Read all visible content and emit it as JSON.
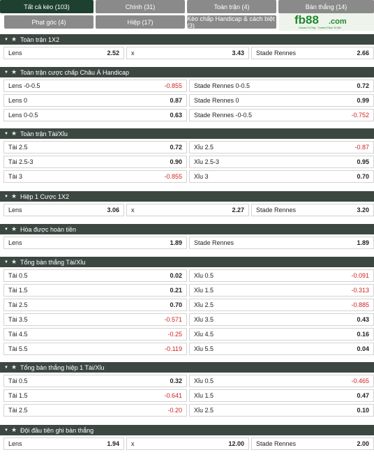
{
  "tabs": {
    "all": "Tất cả kèo (103)",
    "main": "Chính (31)",
    "fulltime": "Toàn trận (4)",
    "goals": "Bàn thắng (14)",
    "corners": "Phạt góc (4)",
    "half": "Hiệp (17)",
    "handicap_margin": "Kèo chấp Handicap & cách biệt (3)"
  },
  "logo": {
    "brand": "fb88",
    "domain": ".com",
    "tagline": "Games To Play",
    "tagline2": "Trusted Place To Bet"
  },
  "sections": [
    {
      "title": "Toàn trận 1X2",
      "rows": [
        [
          {
            "l": "Lens",
            "v": "2.52"
          },
          {
            "l": "x",
            "v": "3.43"
          },
          {
            "l": "Stade Rennes",
            "v": "2.66"
          }
        ]
      ]
    },
    {
      "title": "Toàn trận cược chấp Châu Á Handicap",
      "rows": [
        [
          {
            "l": "Lens -0-0.5",
            "v": "-0.855"
          },
          {
            "l": "Stade Rennes 0-0.5",
            "v": "0.72"
          }
        ],
        [
          {
            "l": "Lens 0",
            "v": "0.87"
          },
          {
            "l": "Stade Rennes 0",
            "v": "0.99"
          }
        ],
        [
          {
            "l": "Lens 0-0.5",
            "v": "0.63"
          },
          {
            "l": "Stade Rennes -0-0.5",
            "v": "-0.752"
          }
        ]
      ]
    },
    {
      "title": "Toàn trận Tài/Xỉu",
      "rows": [
        [
          {
            "l": "Tài 2.5",
            "v": "0.72"
          },
          {
            "l": "Xỉu 2.5",
            "v": "-0.87"
          }
        ],
        [
          {
            "l": "Tài 2.5-3",
            "v": "0.90"
          },
          {
            "l": "Xỉu 2.5-3",
            "v": "0.95"
          }
        ],
        [
          {
            "l": "Tài 3",
            "v": "-0.855"
          },
          {
            "l": "Xỉu 3",
            "v": "0.70"
          }
        ]
      ]
    },
    {
      "title": "Hiệp 1 Cược 1X2",
      "rows": [
        [
          {
            "l": "Lens",
            "v": "3.06"
          },
          {
            "l": "x",
            "v": "2.27"
          },
          {
            "l": "Stade Rennes",
            "v": "3.20"
          }
        ]
      ]
    },
    {
      "title": "Hòa được hoàn tiền",
      "rows": [
        [
          {
            "l": "Lens",
            "v": "1.89"
          },
          {
            "l": "Stade Rennes",
            "v": "1.89"
          }
        ]
      ]
    },
    {
      "title": "Tổng bàn thắng Tài/Xỉu",
      "rows": [
        [
          {
            "l": "Tài 0.5",
            "v": "0.02"
          },
          {
            "l": "Xỉu 0.5",
            "v": "-0.091"
          }
        ],
        [
          {
            "l": "Tài 1.5",
            "v": "0.21"
          },
          {
            "l": "Xỉu 1.5",
            "v": "-0.313"
          }
        ],
        [
          {
            "l": "Tài 2.5",
            "v": "0.70"
          },
          {
            "l": "Xỉu 2.5",
            "v": "-0.885"
          }
        ],
        [
          {
            "l": "Tài 3.5",
            "v": "-0.571"
          },
          {
            "l": "Xỉu 3.5",
            "v": "0.43"
          }
        ],
        [
          {
            "l": "Tài 4.5",
            "v": "-0.25"
          },
          {
            "l": "Xỉu 4.5",
            "v": "0.16"
          }
        ],
        [
          {
            "l": "Tài 5.5",
            "v": "-0.119"
          },
          {
            "l": "Xỉu 5.5",
            "v": "0.04"
          }
        ]
      ]
    },
    {
      "title": "Tổng bàn thắng hiệp 1 Tài/Xỉu",
      "rows": [
        [
          {
            "l": "Tài 0.5",
            "v": "0.32"
          },
          {
            "l": "Xỉu 0.5",
            "v": "-0.465"
          }
        ],
        [
          {
            "l": "Tài 1.5",
            "v": "-0.641"
          },
          {
            "l": "Xỉu 1.5",
            "v": "0.47"
          }
        ],
        [
          {
            "l": "Tài 2.5",
            "v": "-0.20"
          },
          {
            "l": "Xỉu 2.5",
            "v": "0.10"
          }
        ]
      ]
    },
    {
      "title": "Đội đầu tiên ghi bàn thắng",
      "rows": [
        [
          {
            "l": "Lens",
            "v": "1.94"
          },
          {
            "l": "x",
            "v": "12.00"
          },
          {
            "l": "Stade Rennes",
            "v": "2.00"
          }
        ]
      ]
    }
  ],
  "colors": {
    "header_bg": "#3c4742",
    "tab_bg": "#8a8a8a",
    "tab_active": "#1e4030",
    "negative": "#d01f1f"
  }
}
